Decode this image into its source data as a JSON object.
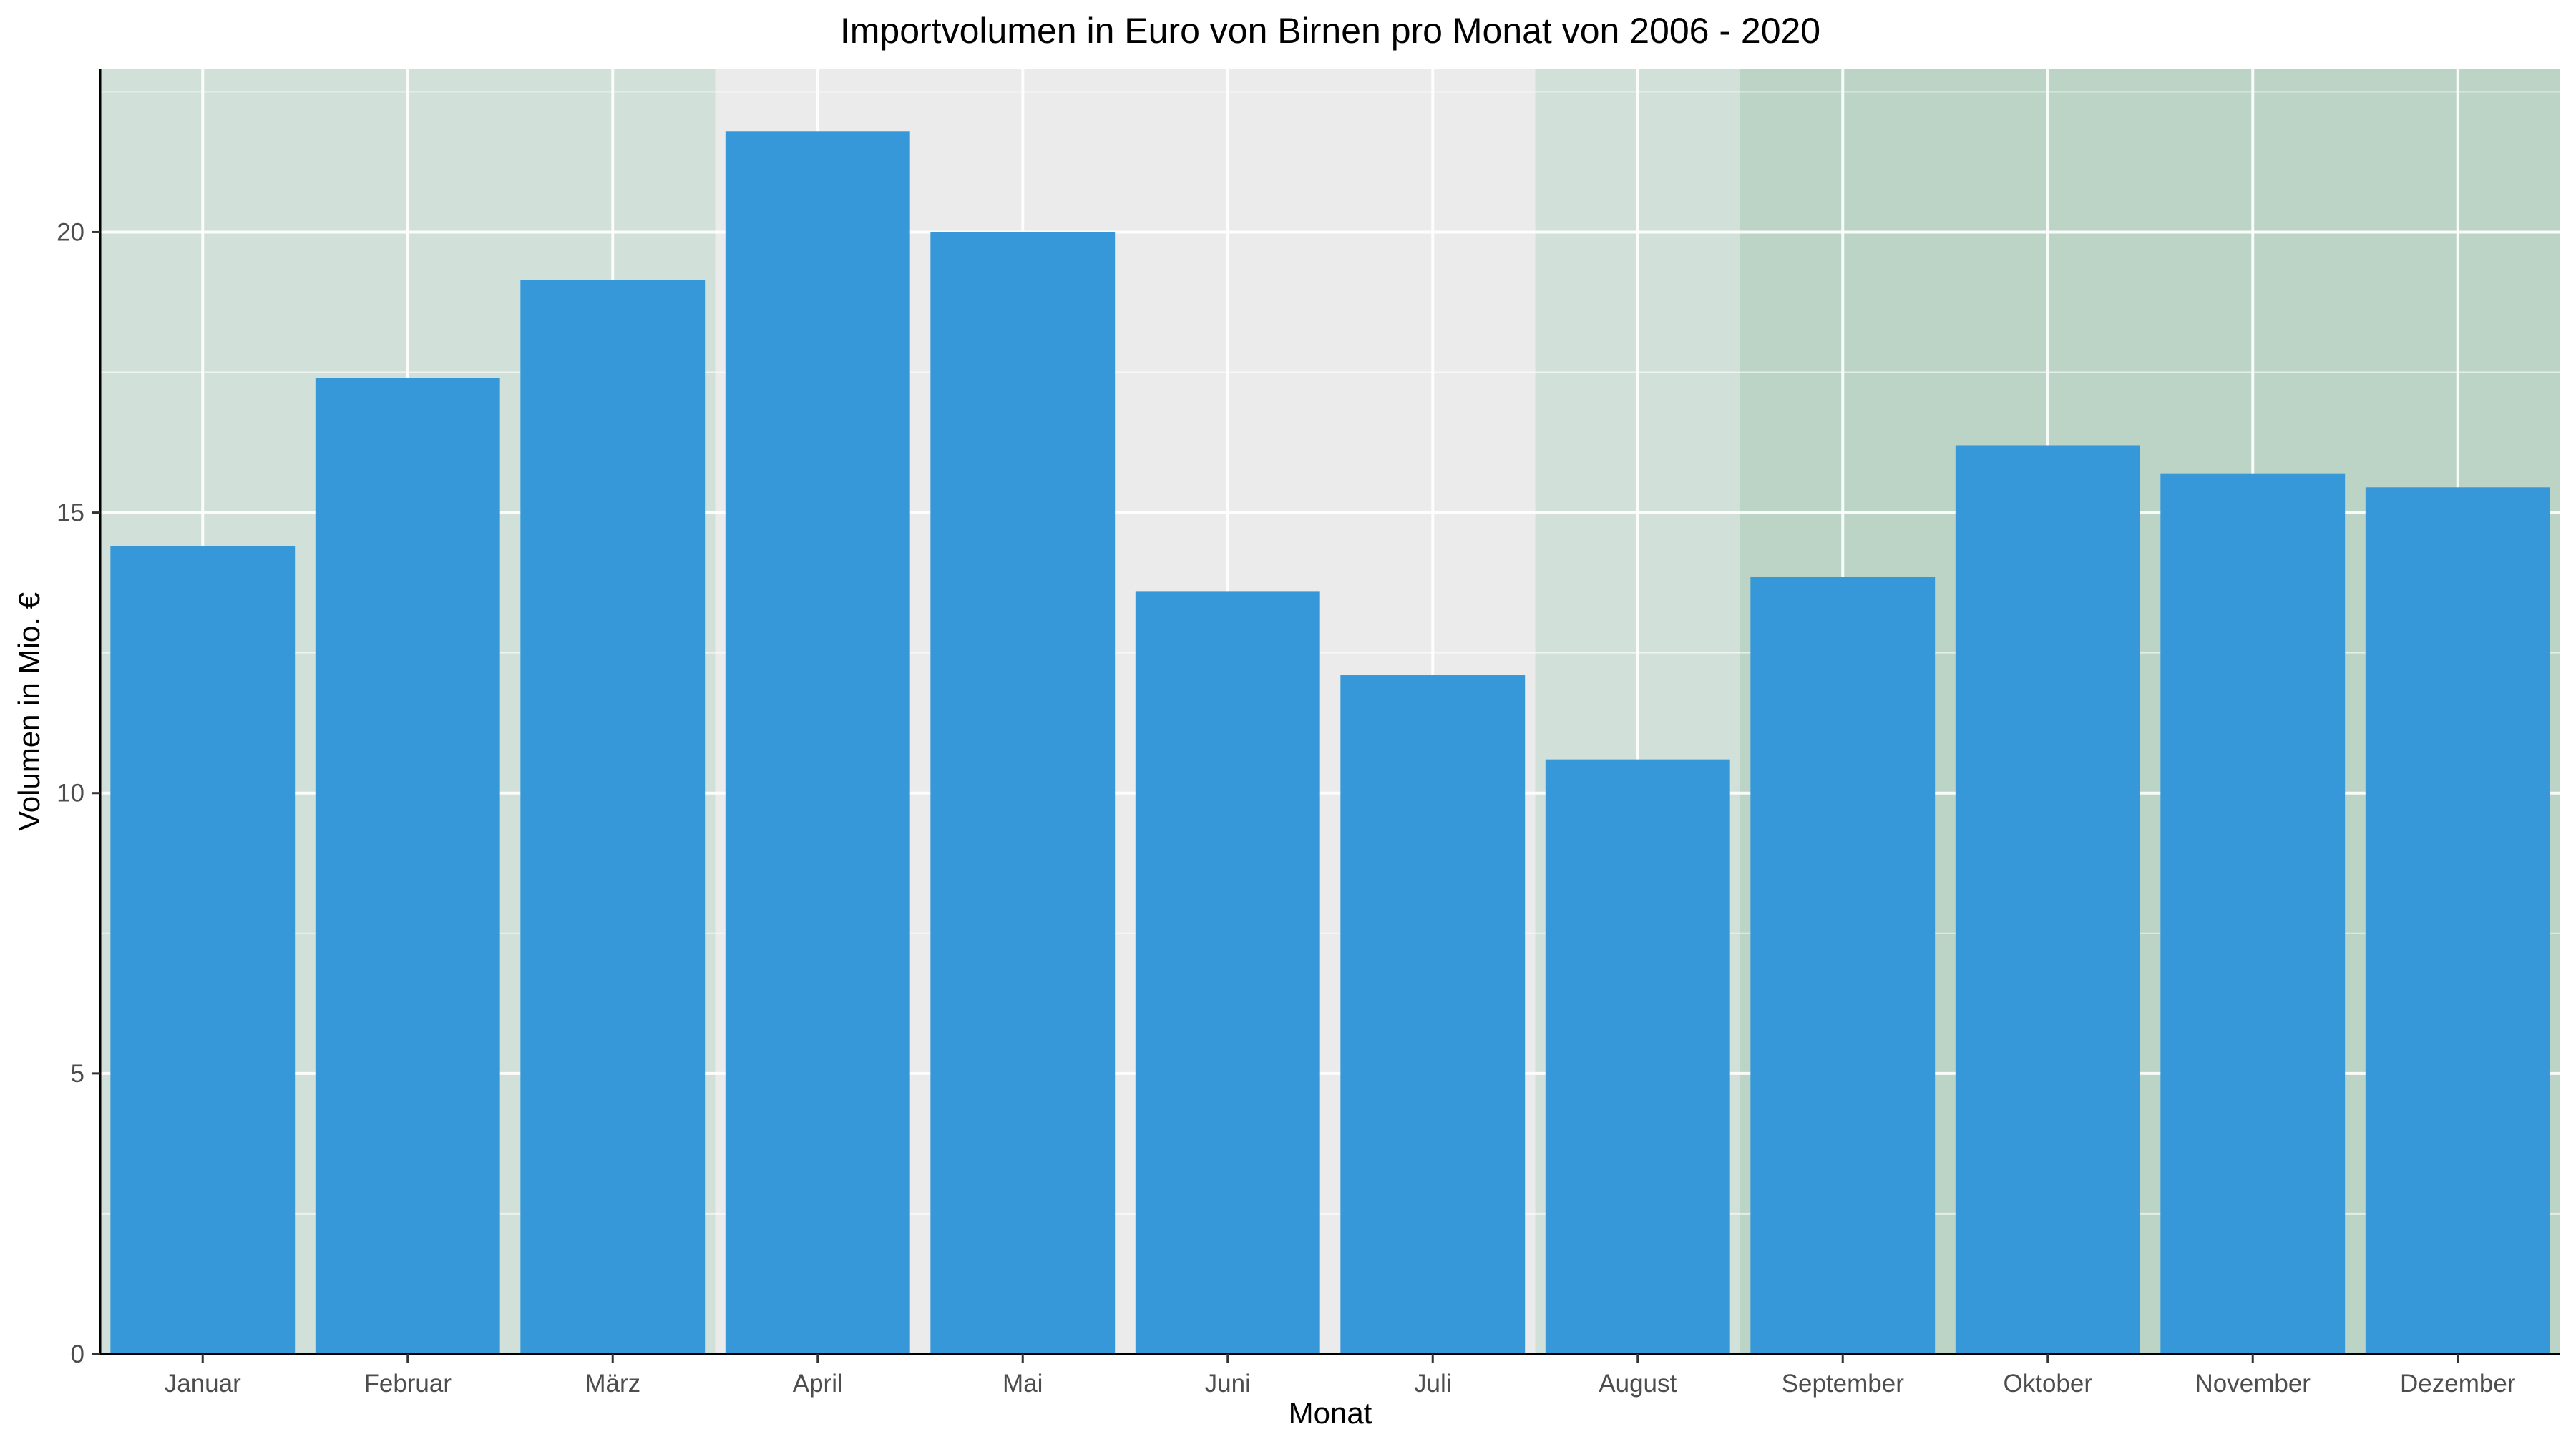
{
  "chart_data": {
    "type": "bar",
    "title": "Importvolumen in Euro von Birnen pro Monat von 2006 - 2020",
    "xlabel": "Monat",
    "ylabel": "Volumen in Mio. €",
    "categories": [
      "Januar",
      "Februar",
      "März",
      "April",
      "Mai",
      "Juni",
      "Juli",
      "August",
      "September",
      "Oktober",
      "November",
      "Dezember"
    ],
    "values": [
      14.4,
      17.4,
      19.15,
      21.8,
      20.0,
      13.6,
      12.1,
      10.6,
      13.85,
      16.2,
      15.7,
      15.45
    ],
    "ylim": [
      0,
      22.9
    ],
    "yticks": [
      0,
      5,
      10,
      15,
      20
    ],
    "grid": true,
    "bar_color": "#3698d9",
    "panel_background": "#ebebeb",
    "gridline_color": "#ffffff",
    "season_bands": [
      {
        "from": "Januar",
        "to": "März",
        "color": "#c8dcd2",
        "opacity": 0.75
      },
      {
        "from": "August",
        "to": "Dezember",
        "color": "#c8dcd2",
        "opacity": 0.75
      },
      {
        "from": "September",
        "to": "Dezember",
        "color": "#a8c8b4",
        "opacity": 0.5
      }
    ]
  }
}
